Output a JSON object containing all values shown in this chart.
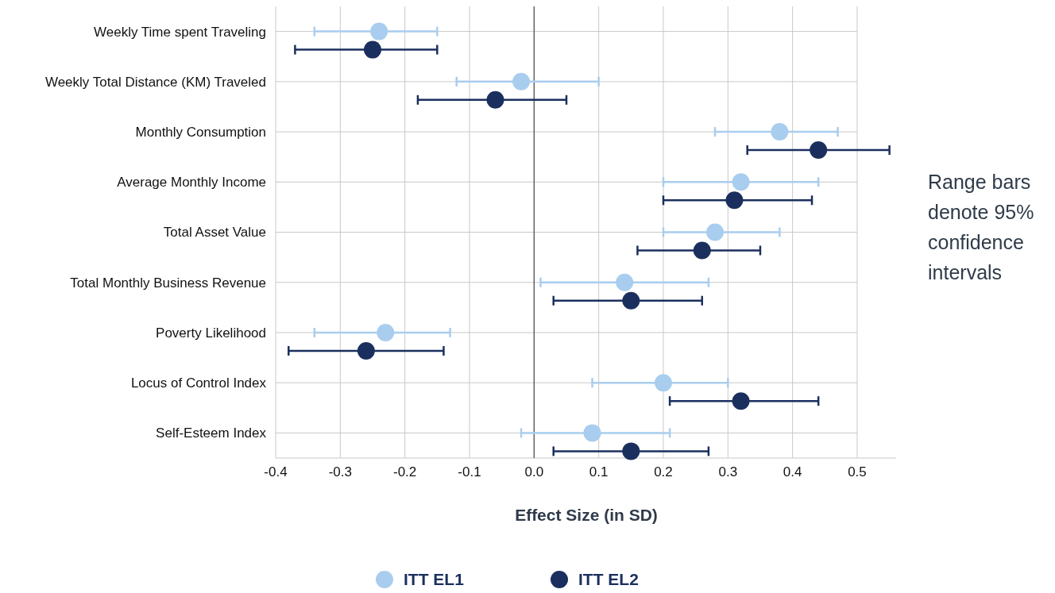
{
  "chart_data": {
    "type": "scatter",
    "orientation": "horizontal",
    "xlabel": "Effect Size (in SD)",
    "categories": [
      "Weekly Time spent Traveling",
      "Weekly Total Distance (KM) Traveled",
      "Monthly Consumption",
      "Average Monthly Income",
      "Total Asset Value",
      "Total Monthly Business Revenue",
      "Poverty Likelihood",
      "Locus of Control Index",
      "Self-Esteem Index"
    ],
    "series": [
      {
        "name": "ITT EL1",
        "color": "#a9cdee",
        "values": [
          -0.24,
          -0.02,
          0.38,
          0.32,
          0.28,
          0.14,
          -0.23,
          0.2,
          0.09
        ],
        "errors": [
          [
            -0.34,
            -0.15
          ],
          [
            -0.12,
            0.1
          ],
          [
            0.28,
            0.47
          ],
          [
            0.2,
            0.44
          ],
          [
            0.2,
            0.38
          ],
          [
            0.01,
            0.27
          ],
          [
            -0.34,
            -0.13
          ],
          [
            0.09,
            0.3
          ],
          [
            -0.02,
            0.21
          ]
        ]
      },
      {
        "name": "ITT EL2",
        "color": "#1b2f5e",
        "values": [
          -0.25,
          -0.06,
          0.44,
          0.31,
          0.26,
          0.15,
          -0.26,
          0.32,
          0.15
        ],
        "errors": [
          [
            -0.37,
            -0.15
          ],
          [
            -0.18,
            0.05
          ],
          [
            0.33,
            0.55
          ],
          [
            0.2,
            0.43
          ],
          [
            0.16,
            0.35
          ],
          [
            0.03,
            0.26
          ],
          [
            -0.38,
            -0.14
          ],
          [
            0.21,
            0.44
          ],
          [
            0.03,
            0.27
          ]
        ]
      }
    ],
    "xlim": [
      -0.4,
      0.56
    ],
    "xticks": [
      -0.4,
      -0.3,
      -0.2,
      -0.1,
      {
        "value": 0,
        "label": "0.0"
      },
      0.1,
      0.2,
      0.3,
      0.4,
      0.5
    ],
    "ref_lines": [
      {
        "axis": "x",
        "value": 0,
        "color": "#555555"
      }
    ],
    "grid": true,
    "marker": "circle",
    "legend": "bottom",
    "annotations": [
      "Range bars denote 95% confidence intervals"
    ]
  }
}
